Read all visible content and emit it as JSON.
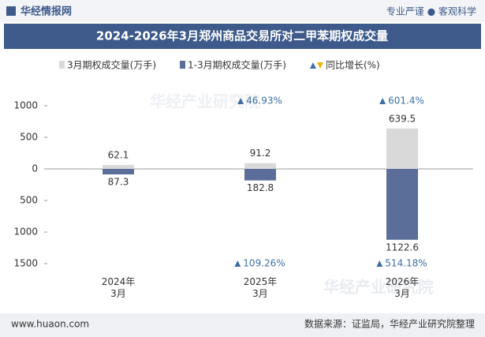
{
  "header": {
    "brand": "华经情报网",
    "slogan": "专业严谨 ● 客观科学"
  },
  "chart_data": {
    "type": "bar",
    "title": "2024-2026年3月郑州商品交易所对二甲苯期权成交量",
    "categories": [
      "2024年\n3月",
      "2025年\n3月",
      "2026年\n3月"
    ],
    "series": [
      {
        "name": "3月期权成交量(万手)",
        "color": "#d9d9d9",
        "direction": "up",
        "values": [
          62.1,
          91.2,
          639.5
        ],
        "growth": [
          null,
          46.93,
          601.4
        ],
        "growth_labels": [
          null,
          "46.93%",
          "601.4%"
        ]
      },
      {
        "name": "1-3月期权成交量(万手)",
        "color": "#5b6e9a",
        "direction": "down",
        "values": [
          87.3,
          182.8,
          1122.6
        ],
        "growth": [
          null,
          109.26,
          514.18
        ],
        "growth_labels": [
          null,
          "109.26%",
          "514.18%"
        ]
      }
    ],
    "growth_legend": "同比增长(%)",
    "growth_color": "#3d6fa6",
    "ylim": [
      -1500,
      1000
    ],
    "yticks": [
      1000,
      500,
      0,
      {
        "value": -500,
        "label": "500"
      },
      {
        "value": -1000,
        "label": "1000"
      },
      {
        "value": -1500,
        "label": "1500"
      }
    ]
  },
  "watermark": "华经产业研究院",
  "footer": {
    "site": "www.huaon.com",
    "source": "数据来源：证监局，华经产业研究院整理"
  }
}
